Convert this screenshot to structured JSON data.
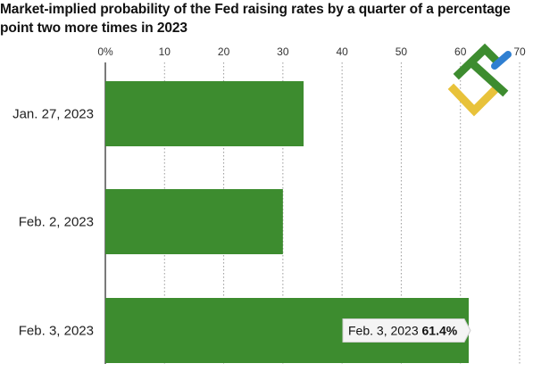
{
  "title": "Market-implied probability of the Fed raising rates by a quarter of a percentage point two more times in 2023",
  "chart_data": {
    "type": "bar",
    "orientation": "horizontal",
    "title": "Market-implied probability of the Fed raising rates by a quarter of a percentage point two more times in 2023",
    "categories": [
      "Jan. 27, 2023",
      "Feb. 2, 2023",
      "Feb. 3, 2023"
    ],
    "values": [
      33.5,
      30,
      61.4
    ],
    "xlim": [
      0,
      70
    ],
    "xticks": [
      0,
      10,
      20,
      30,
      40,
      50,
      60,
      70
    ],
    "xtick_labels": [
      "0%",
      "10",
      "20",
      "30",
      "40",
      "50",
      "60",
      "70"
    ],
    "grid": "vertical dotted",
    "bar_color": "#3d8c2f",
    "annotation": {
      "category": "Feb. 3, 2023",
      "label": "Feb. 3, 2023",
      "value_label": "61.4%"
    }
  },
  "logo": {
    "colors": [
      "#3d8c2f",
      "#e8c23a",
      "#2f7fd1"
    ]
  }
}
